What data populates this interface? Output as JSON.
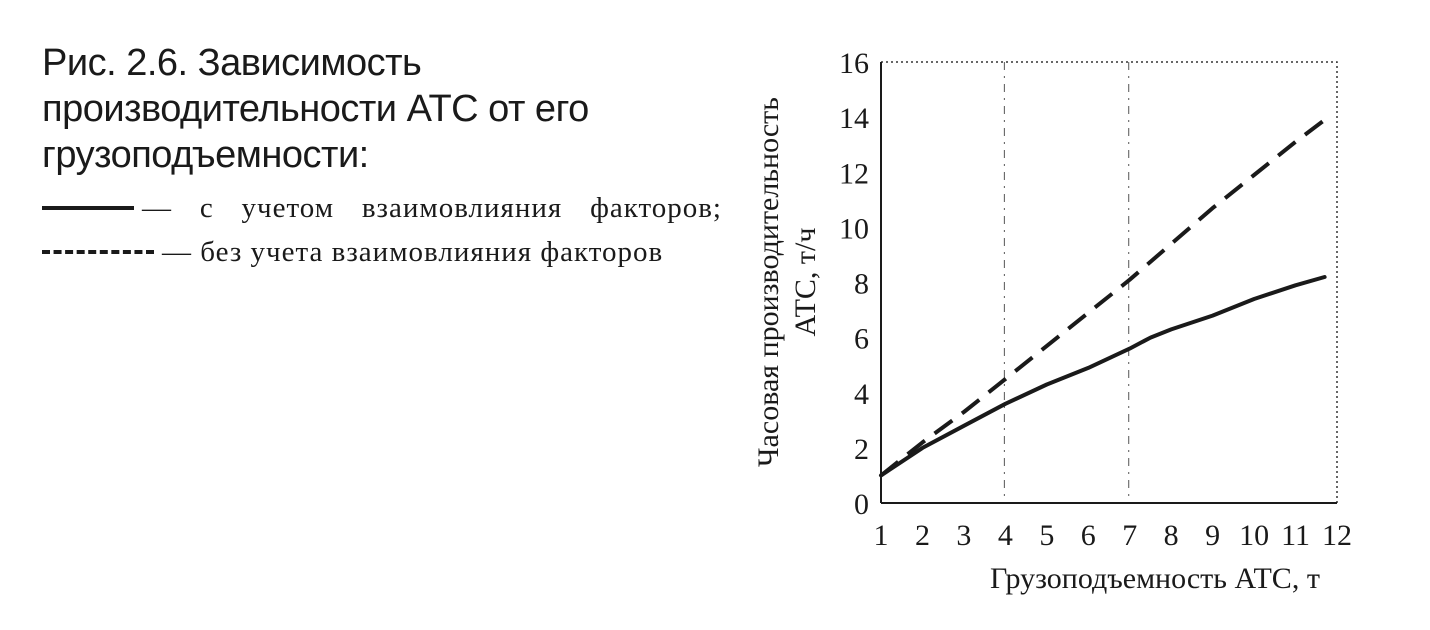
{
  "caption": {
    "title": "Рис. 2.6. Зависимость производительности АТС от его грузоподъемности:",
    "legend_solid_text": "— с учетом взаимовлияния факторов;",
    "legend_dashed_text": "— без учета взаимовлияния факторов"
  },
  "chart_data": {
    "type": "line",
    "xlabel": "Грузоподъемность АТС,  т",
    "ylabel_line1": "Часовая производительность",
    "ylabel_line2": "АТС,  т/ч",
    "xlim": [
      1,
      12
    ],
    "ylim": [
      0,
      16
    ],
    "x_ticks": [
      1,
      2,
      3,
      4,
      5,
      6,
      7,
      8,
      9,
      10,
      11,
      12
    ],
    "y_ticks": [
      0,
      2,
      4,
      6,
      8,
      10,
      12,
      14,
      16
    ],
    "grid_vertical_at": [
      4,
      7
    ],
    "legend": "caption",
    "series": [
      {
        "style": "solid",
        "color": "#1a1a1a",
        "x": [
          1,
          2,
          3,
          4,
          5,
          6,
          7,
          7.5,
          8,
          9,
          10,
          11,
          11.7
        ],
        "y": [
          1.0,
          2.0,
          2.8,
          3.6,
          4.3,
          4.9,
          5.6,
          6.0,
          6.3,
          6.8,
          7.4,
          7.9,
          8.2
        ]
      },
      {
        "style": "dashed",
        "color": "#1a1a1a",
        "x": [
          1,
          2,
          3,
          4,
          5,
          6,
          7,
          8,
          9,
          10,
          11,
          11.7
        ],
        "y": [
          1.0,
          2.2,
          3.3,
          4.5,
          5.7,
          6.9,
          8.1,
          9.4,
          10.7,
          11.9,
          13.1,
          13.9
        ]
      }
    ]
  }
}
